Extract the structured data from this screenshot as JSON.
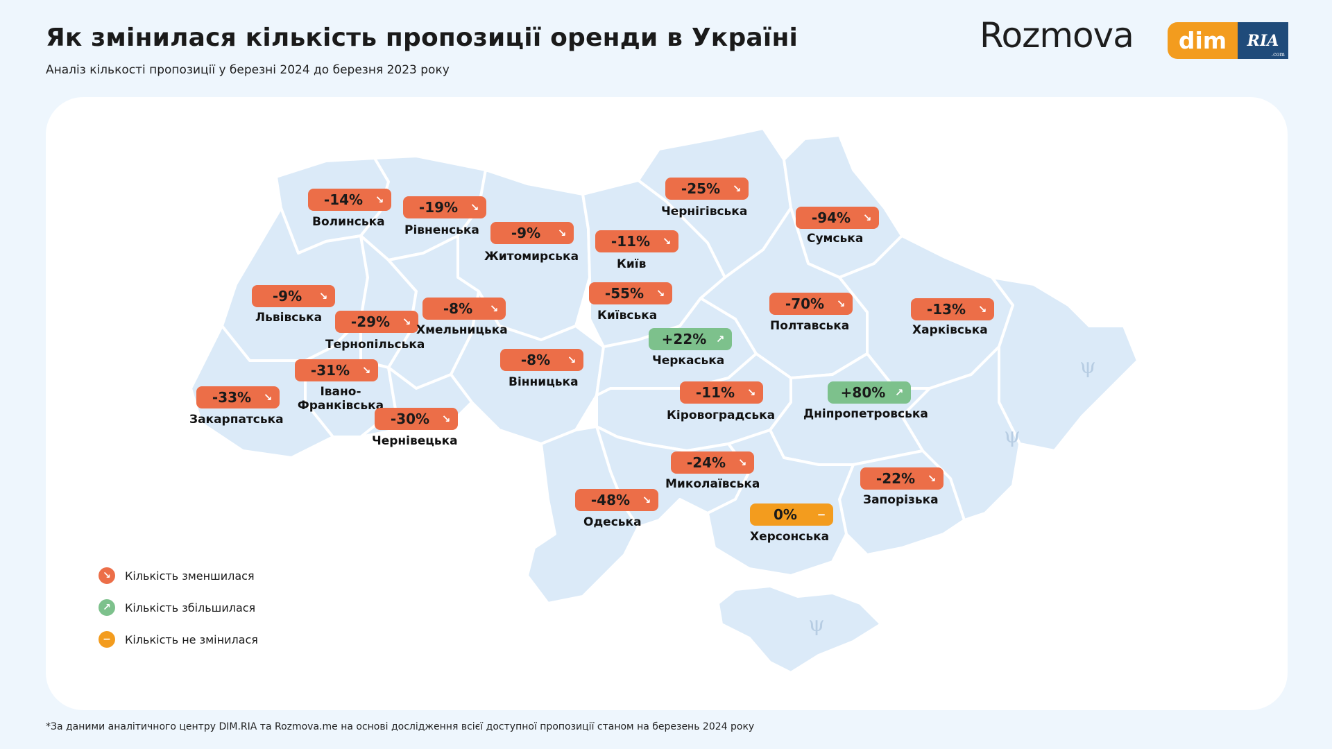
{
  "header": {
    "title": "Як змінилася кількість пропозиції оренди в Україні",
    "subtitle": "Аналіз кількості пропозиції у березні 2024 до березня 2023 року"
  },
  "brands": {
    "rozmova": "Rozmova",
    "dim": "dim",
    "ria": "RIA",
    "ria_suffix": ".com"
  },
  "colors": {
    "decrease": "#ec6e48",
    "increase": "#7dc18c",
    "unchanged": "#f39c1e",
    "map_fill": "#dbeaf8",
    "background": "#eef6fd"
  },
  "regions": [
    {
      "name": "Волинська",
      "value": "-14%",
      "trend": "down"
    },
    {
      "name": "Рівненська",
      "value": "-19%",
      "trend": "down"
    },
    {
      "name": "Житомирська",
      "value": "-9%",
      "trend": "down"
    },
    {
      "name": "Київ",
      "value": "-11%",
      "trend": "down"
    },
    {
      "name": "Чернігівська",
      "value": "-25%",
      "trend": "down"
    },
    {
      "name": "Сумська",
      "value": "-94%",
      "trend": "down"
    },
    {
      "name": "Львівська",
      "value": "-9%",
      "trend": "down"
    },
    {
      "name": "Тернопільська",
      "value": "-29%",
      "trend": "down"
    },
    {
      "name": "Хмельницька",
      "value": "-8%",
      "trend": "down"
    },
    {
      "name": "Київська",
      "value": "-55%",
      "trend": "down"
    },
    {
      "name": "Полтавська",
      "value": "-70%",
      "trend": "down"
    },
    {
      "name": "Харківська",
      "value": "-13%",
      "trend": "down"
    },
    {
      "name": "Черкаська",
      "value": "+22%",
      "trend": "up"
    },
    {
      "name": "Вінницька",
      "value": "-8%",
      "trend": "down"
    },
    {
      "name": "Івано-Франківська",
      "value": "-31%",
      "trend": "down"
    },
    {
      "name": "Закарпатська",
      "value": "-33%",
      "trend": "down"
    },
    {
      "name": "Чернівецька",
      "value": "-30%",
      "trend": "down"
    },
    {
      "name": "Кіровоградська",
      "value": "-11%",
      "trend": "down"
    },
    {
      "name": "Дніпропетровська",
      "value": "+80%",
      "trend": "up"
    },
    {
      "name": "Миколаївська",
      "value": "-24%",
      "trend": "down"
    },
    {
      "name": "Запорізька",
      "value": "-22%",
      "trend": "down"
    },
    {
      "name": "Одеська",
      "value": "-48%",
      "trend": "down"
    },
    {
      "name": "Херсонська",
      "value": "0%",
      "trend": "flat"
    }
  ],
  "legend": [
    {
      "label": "Кількість зменшилася",
      "trend": "down",
      "icon": "arrow-down-right-icon"
    },
    {
      "label": "Кількість збільшилася",
      "trend": "up",
      "icon": "arrow-up-right-icon"
    },
    {
      "label": "Кількість не змінилася",
      "trend": "flat",
      "icon": "minus-icon"
    }
  ],
  "footnote": "*За даними аналітичного центру DIM.RIA та Rozmova.me на основі дослідження всієї доступної пропозиції станом на березень 2024 року"
}
